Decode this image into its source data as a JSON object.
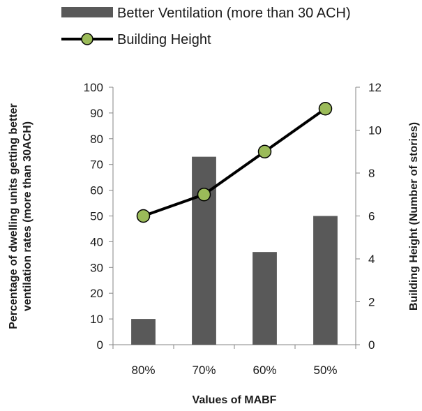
{
  "chart_data": {
    "type": "bar",
    "title": "",
    "categories": [
      "80%",
      "70%",
      "60%",
      "50%"
    ],
    "xlabel": "Values of MABF",
    "ylabel_left": [
      "Percentage of dwelling units getting better",
      "ventilation rates (more than 30ACH)"
    ],
    "ylabel_right": "Building Height (Number of stories)",
    "ylim_left": [
      0,
      100
    ],
    "yticks_left": [
      "0",
      "10",
      "20",
      "30",
      "40",
      "50",
      "60",
      "70",
      "80",
      "90",
      "100"
    ],
    "ylim_right": [
      0,
      12
    ],
    "yticks_right": [
      "0",
      "2",
      "4",
      "6",
      "8",
      "10",
      "12"
    ],
    "grid": false,
    "legend_position": "top",
    "series": [
      {
        "name": "Better Ventilation (more than 30 ACH)",
        "type": "bar",
        "axis": "left",
        "color": "#595959",
        "values": [
          10,
          73,
          36,
          50
        ]
      },
      {
        "name": "Building Height",
        "type": "line",
        "axis": "right",
        "color": "#000000",
        "marker_color": "#9bbb59",
        "values": [
          6,
          7,
          9,
          11
        ]
      }
    ]
  }
}
